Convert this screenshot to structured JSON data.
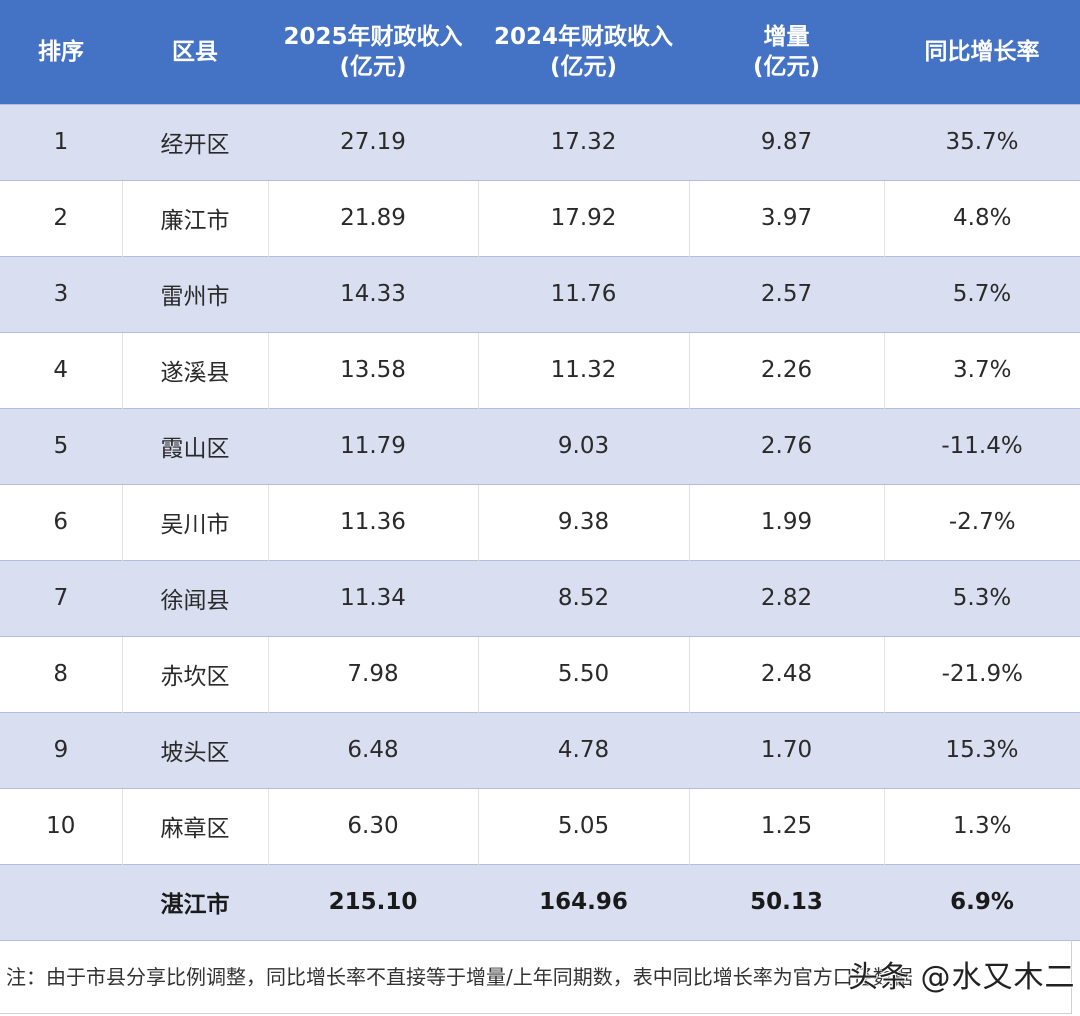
{
  "table": {
    "headers": [
      {
        "line1": "排序",
        "line2": ""
      },
      {
        "line1": "区县",
        "line2": ""
      },
      {
        "line1": "2025年财政收入",
        "line2": "(亿元)"
      },
      {
        "line1": "2024年财政收入",
        "line2": "(亿元)"
      },
      {
        "line1": "增量",
        "line2": "(亿元)"
      },
      {
        "line1": "同比增长率",
        "line2": ""
      }
    ],
    "rows": [
      {
        "rank": "1",
        "district": "经开区",
        "rev2025": "27.19",
        "rev2024": "17.32",
        "increase": "9.87",
        "growth": "35.7%"
      },
      {
        "rank": "2",
        "district": "廉江市",
        "rev2025": "21.89",
        "rev2024": "17.92",
        "increase": "3.97",
        "growth": "4.8%"
      },
      {
        "rank": "3",
        "district": "雷州市",
        "rev2025": "14.33",
        "rev2024": "11.76",
        "increase": "2.57",
        "growth": "5.7%"
      },
      {
        "rank": "4",
        "district": "遂溪县",
        "rev2025": "13.58",
        "rev2024": "11.32",
        "increase": "2.26",
        "growth": "3.7%"
      },
      {
        "rank": "5",
        "district": "霞山区",
        "rev2025": "11.79",
        "rev2024": "9.03",
        "increase": "2.76",
        "growth": "-11.4%"
      },
      {
        "rank": "6",
        "district": "吴川市",
        "rev2025": "11.36",
        "rev2024": "9.38",
        "increase": "1.99",
        "growth": "-2.7%"
      },
      {
        "rank": "7",
        "district": "徐闻县",
        "rev2025": "11.34",
        "rev2024": "8.52",
        "increase": "2.82",
        "growth": "5.3%"
      },
      {
        "rank": "8",
        "district": "赤坎区",
        "rev2025": "7.98",
        "rev2024": "5.50",
        "increase": "2.48",
        "growth": "-21.9%"
      },
      {
        "rank": "9",
        "district": "坡头区",
        "rev2025": "6.48",
        "rev2024": "4.78",
        "increase": "1.70",
        "growth": "15.3%"
      },
      {
        "rank": "10",
        "district": "麻章区",
        "rev2025": "6.30",
        "rev2024": "5.05",
        "increase": "1.25",
        "growth": "1.3%"
      }
    ],
    "total": {
      "rank": "",
      "district": "湛江市",
      "rev2025": "215.10",
      "rev2024": "164.96",
      "increase": "50.13",
      "growth": "6.9%"
    }
  },
  "note": "注：由于市县分享比例调整，同比增长率不直接等于增量/上年同期数，表中同比增长率为官方口径数据",
  "watermark": "头条 @水又木二",
  "colors": {
    "header_bg": "#4472c4",
    "stripe_bg": "#d9dff0",
    "row_bg": "#ffffff"
  }
}
